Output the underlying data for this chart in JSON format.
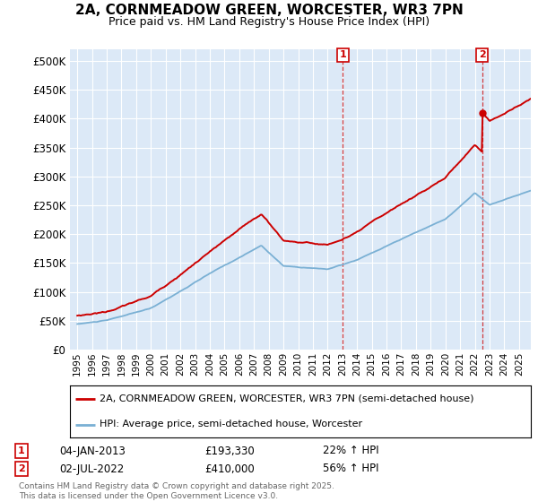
{
  "title": "2A, CORNMEADOW GREEN, WORCESTER, WR3 7PN",
  "subtitle": "Price paid vs. HM Land Registry's House Price Index (HPI)",
  "legend_label_red": "2A, CORNMEADOW GREEN, WORCESTER, WR3 7PN (semi-detached house)",
  "legend_label_blue": "HPI: Average price, semi-detached house, Worcester",
  "sale1_date": "04-JAN-2013",
  "sale1_price": "£193,330",
  "sale1_hpi": "22% ↑ HPI",
  "sale2_date": "02-JUL-2022",
  "sale2_price": "£410,000",
  "sale2_hpi": "56% ↑ HPI",
  "footer": "Contains HM Land Registry data © Crown copyright and database right 2025.\nThis data is licensed under the Open Government Licence v3.0.",
  "ylim_top": 520000,
  "yticks": [
    0,
    50000,
    100000,
    150000,
    200000,
    250000,
    300000,
    350000,
    400000,
    450000,
    500000
  ],
  "plot_bg": "#dce9f7",
  "red_color": "#cc0000",
  "blue_color": "#7ab0d4",
  "dashed_color": "#cc0000",
  "marker1_x": 2013.04,
  "marker2_x": 2022.5,
  "sale1_value": 193330,
  "sale2_value": 410000,
  "xmin": 1994.5,
  "xmax": 2025.8
}
